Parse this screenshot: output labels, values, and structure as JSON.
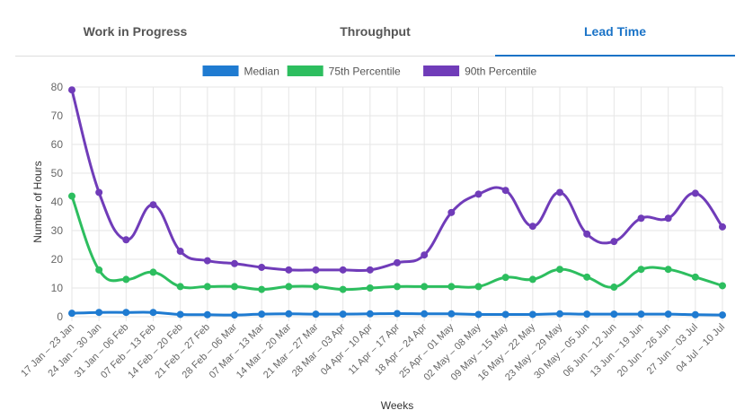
{
  "tabs": [
    {
      "label": "Work in Progress",
      "active": false
    },
    {
      "label": "Throughput",
      "active": false
    },
    {
      "label": "Lead Time",
      "active": true
    }
  ],
  "colors": {
    "tab_text": "#555555",
    "tab_active": "#1a73c7",
    "grid": "#e6e6e6",
    "axis_text": "#666666"
  },
  "chart_data": {
    "type": "line",
    "title": "",
    "xlabel": "Weeks",
    "ylabel": "Number of Hours",
    "ylim": [
      0,
      80
    ],
    "yticks": [
      0,
      10,
      20,
      30,
      40,
      50,
      60,
      70,
      80
    ],
    "grid": true,
    "legend_position": "top",
    "categories": [
      "17 Jan – 23 Jan",
      "24 Jan – 30 Jan",
      "31 Jan – 06 Feb",
      "07 Feb – 13 Feb",
      "14 Feb – 20 Feb",
      "21 Feb – 27 Feb",
      "28 Feb – 06 Mar",
      "07 Mar – 13 Mar",
      "14 Mar – 20 Mar",
      "21 Mar – 27 Mar",
      "28 Mar – 03 Apr",
      "04 Apr – 10 Apr",
      "11 Apr – 17 Apr",
      "18 Apr – 24 Apr",
      "25 Apr – 01 May",
      "02 May – 08 May",
      "09 May – 15 May",
      "16 May – 22 May",
      "23 May – 29 May",
      "30 May – 05 Jun",
      "06 Jun – 12 Jun",
      "13 Jun – 19 Jun",
      "20 Jun – 26 Jun",
      "27 Jun – 03 Jul",
      "04 Jul – 10 Jul"
    ],
    "series": [
      {
        "name": "Median",
        "color": "#1f7bd1",
        "values": [
          1.2,
          1.5,
          1.5,
          1.5,
          0.8,
          0.7,
          0.6,
          0.9,
          1.0,
          0.9,
          0.9,
          1.0,
          1.1,
          1.0,
          1.0,
          0.8,
          0.8,
          0.8,
          1.0,
          0.9,
          0.9,
          0.9,
          0.9,
          0.7,
          0.6
        ]
      },
      {
        "name": "75th Percentile",
        "color": "#2dbe5f",
        "values": [
          42.0,
          16.3,
          13.0,
          15.5,
          10.5,
          10.5,
          10.5,
          9.5,
          10.5,
          10.5,
          9.5,
          10.0,
          10.5,
          10.5,
          10.5,
          10.5,
          13.7,
          13.0,
          16.5,
          13.8,
          10.3,
          16.5,
          16.5,
          13.8,
          10.8
        ]
      },
      {
        "name": "90th Percentile",
        "color": "#703cb9",
        "values": [
          79.0,
          43.3,
          26.8,
          39.0,
          22.8,
          19.5,
          18.5,
          17.2,
          16.3,
          16.3,
          16.3,
          16.3,
          18.8,
          21.5,
          36.3,
          42.7,
          44.0,
          31.5,
          43.3,
          28.8,
          26.2,
          34.3,
          34.3,
          43.0,
          31.3
        ]
      }
    ]
  }
}
